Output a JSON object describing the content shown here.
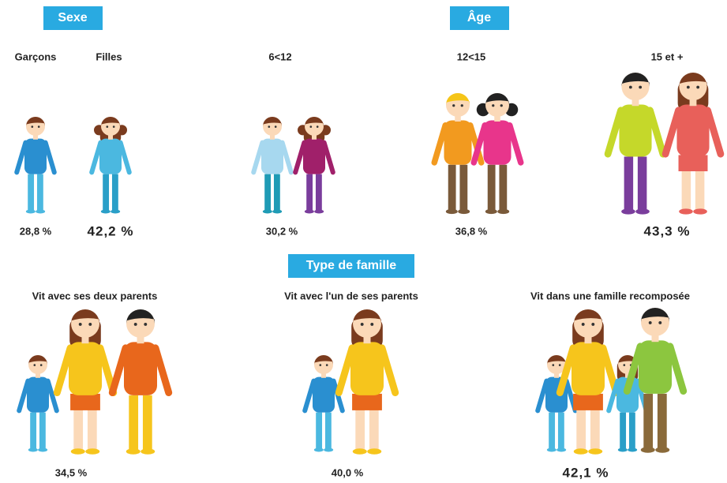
{
  "sections": {
    "sexe": {
      "title": "Sexe",
      "groups": [
        {
          "label": "Garçons",
          "value": "28,8 %"
        },
        {
          "label": "Filles",
          "value": "42,2 %"
        }
      ]
    },
    "age": {
      "title": "Âge",
      "groups": [
        {
          "label": "6<12",
          "value": "30,2 %"
        },
        {
          "label": "12<15",
          "value": "36,8 %"
        },
        {
          "label": "15 et +",
          "value": "43,3 %"
        }
      ]
    },
    "famille": {
      "title": "Type de famille",
      "groups": [
        {
          "label": "Vit avec ses deux parents",
          "value": "34,5 %"
        },
        {
          "label": "Vit avec l'un de ses parents",
          "value": "40,0 %"
        },
        {
          "label": "Vit dans une famille recomposée",
          "value": "42,1 %"
        }
      ]
    }
  }
}
